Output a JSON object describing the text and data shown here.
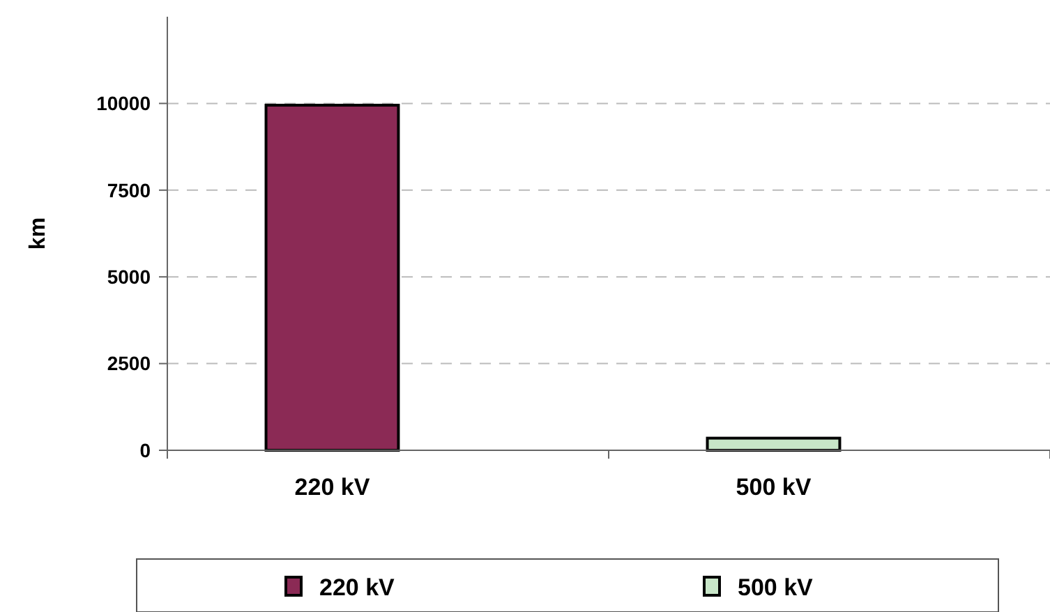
{
  "chart_data": {
    "type": "bar",
    "ylabel": "km",
    "categories": [
      "220 kV",
      "500 kV"
    ],
    "series": [
      {
        "name": "220 kV",
        "color": "#8b2a55",
        "values": [
          9950,
          null
        ]
      },
      {
        "name": "500 kV",
        "color": "#c8e6c8",
        "values": [
          null,
          350
        ]
      }
    ],
    "ylim": [
      0,
      12500
    ],
    "yticks": [
      0,
      2500,
      5000,
      7500,
      10000
    ],
    "grid": "y",
    "legend": "bottom"
  }
}
